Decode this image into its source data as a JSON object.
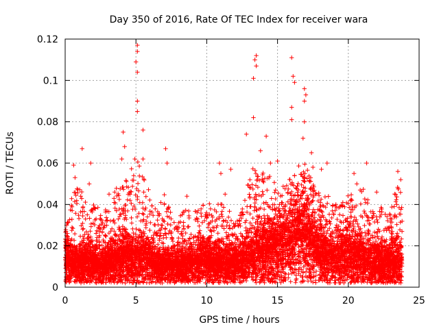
{
  "chart_data": {
    "type": "scatter",
    "title": "Day 350 of 2016, Rate Of TEC Index for receiver wara",
    "xlabel": "GPS time / hours",
    "ylabel": "ROTI / TECUs",
    "xlim": [
      0,
      25
    ],
    "ylim": [
      0,
      0.12
    ],
    "xticks": [
      "0",
      "5",
      "10",
      "15",
      "20",
      "25"
    ],
    "yticks": [
      "0",
      "0.02",
      "0.04",
      "0.06",
      "0.08",
      "0.1",
      "0.12"
    ],
    "grid": true,
    "marker": "+",
    "color": "#ff0000",
    "x_coverage": [
      0,
      23.8
    ],
    "envelope": [
      [
        0.0,
        0.014,
        0.03
      ],
      [
        0.5,
        0.012,
        0.045
      ],
      [
        1.0,
        0.011,
        0.05
      ],
      [
        1.5,
        0.012,
        0.045
      ],
      [
        2.0,
        0.011,
        0.04
      ],
      [
        2.5,
        0.01,
        0.038
      ],
      [
        3.0,
        0.011,
        0.04
      ],
      [
        3.5,
        0.012,
        0.045
      ],
      [
        4.0,
        0.014,
        0.06
      ],
      [
        4.5,
        0.013,
        0.05
      ],
      [
        5.0,
        0.014,
        0.07
      ],
      [
        5.5,
        0.014,
        0.06
      ],
      [
        6.0,
        0.012,
        0.045
      ],
      [
        6.5,
        0.01,
        0.038
      ],
      [
        7.0,
        0.011,
        0.045
      ],
      [
        7.5,
        0.01,
        0.035
      ],
      [
        8.0,
        0.01,
        0.036
      ],
      [
        8.5,
        0.011,
        0.038
      ],
      [
        9.0,
        0.011,
        0.036
      ],
      [
        9.5,
        0.012,
        0.04
      ],
      [
        10.0,
        0.012,
        0.042
      ],
      [
        10.5,
        0.011,
        0.038
      ],
      [
        11.0,
        0.011,
        0.045
      ],
      [
        11.5,
        0.011,
        0.04
      ],
      [
        12.0,
        0.011,
        0.035
      ],
      [
        12.5,
        0.012,
        0.04
      ],
      [
        13.0,
        0.015,
        0.055
      ],
      [
        13.5,
        0.017,
        0.06
      ],
      [
        14.0,
        0.017,
        0.055
      ],
      [
        14.5,
        0.018,
        0.055
      ],
      [
        15.0,
        0.02,
        0.05
      ],
      [
        15.5,
        0.02,
        0.05
      ],
      [
        16.0,
        0.022,
        0.055
      ],
      [
        16.5,
        0.024,
        0.06
      ],
      [
        17.0,
        0.024,
        0.06
      ],
      [
        17.5,
        0.02,
        0.05
      ],
      [
        18.0,
        0.016,
        0.045
      ],
      [
        18.5,
        0.015,
        0.045
      ],
      [
        19.0,
        0.014,
        0.042
      ],
      [
        19.5,
        0.014,
        0.04
      ],
      [
        20.0,
        0.015,
        0.045
      ],
      [
        20.5,
        0.014,
        0.045
      ],
      [
        21.0,
        0.013,
        0.048
      ],
      [
        21.5,
        0.012,
        0.045
      ],
      [
        22.0,
        0.012,
        0.04
      ],
      [
        22.5,
        0.011,
        0.038
      ],
      [
        23.0,
        0.011,
        0.04
      ],
      [
        23.5,
        0.012,
        0.05
      ]
    ],
    "peaks": [
      {
        "x": 0.1,
        "y": 0.03
      },
      {
        "x": 0.6,
        "y": 0.059
      },
      {
        "x": 0.7,
        "y": 0.053
      },
      {
        "x": 1.2,
        "y": 0.067
      },
      {
        "x": 1.1,
        "y": 0.044
      },
      {
        "x": 1.7,
        "y": 0.05
      },
      {
        "x": 1.8,
        "y": 0.06
      },
      {
        "x": 3.1,
        "y": 0.045
      },
      {
        "x": 3.5,
        "y": 0.046
      },
      {
        "x": 4.0,
        "y": 0.062
      },
      {
        "x": 4.1,
        "y": 0.075
      },
      {
        "x": 4.2,
        "y": 0.068
      },
      {
        "x": 5.1,
        "y": 0.117
      },
      {
        "x": 5.1,
        "y": 0.114
      },
      {
        "x": 5.0,
        "y": 0.109
      },
      {
        "x": 5.1,
        "y": 0.104
      },
      {
        "x": 5.1,
        "y": 0.09
      },
      {
        "x": 5.1,
        "y": 0.085
      },
      {
        "x": 5.5,
        "y": 0.076
      },
      {
        "x": 5.5,
        "y": 0.062
      },
      {
        "x": 7.1,
        "y": 0.067
      },
      {
        "x": 7.2,
        "y": 0.06
      },
      {
        "x": 8.6,
        "y": 0.044
      },
      {
        "x": 10.9,
        "y": 0.06
      },
      {
        "x": 11.0,
        "y": 0.055
      },
      {
        "x": 11.3,
        "y": 0.045
      },
      {
        "x": 11.7,
        "y": 0.057
      },
      {
        "x": 12.8,
        "y": 0.074
      },
      {
        "x": 13.3,
        "y": 0.082
      },
      {
        "x": 13.5,
        "y": 0.112
      },
      {
        "x": 13.4,
        "y": 0.11
      },
      {
        "x": 13.5,
        "y": 0.107
      },
      {
        "x": 13.3,
        "y": 0.101
      },
      {
        "x": 13.8,
        "y": 0.066
      },
      {
        "x": 14.2,
        "y": 0.073
      },
      {
        "x": 14.5,
        "y": 0.06
      },
      {
        "x": 15.0,
        "y": 0.061
      },
      {
        "x": 16.0,
        "y": 0.111
      },
      {
        "x": 16.1,
        "y": 0.102
      },
      {
        "x": 16.2,
        "y": 0.099
      },
      {
        "x": 16.0,
        "y": 0.087
      },
      {
        "x": 16.0,
        "y": 0.081
      },
      {
        "x": 16.9,
        "y": 0.096
      },
      {
        "x": 17.0,
        "y": 0.093
      },
      {
        "x": 16.9,
        "y": 0.09
      },
      {
        "x": 16.9,
        "y": 0.08
      },
      {
        "x": 16.8,
        "y": 0.072
      },
      {
        "x": 17.4,
        "y": 0.065
      },
      {
        "x": 17.5,
        "y": 0.058
      },
      {
        "x": 18.1,
        "y": 0.057
      },
      {
        "x": 18.5,
        "y": 0.06
      },
      {
        "x": 20.4,
        "y": 0.055
      },
      {
        "x": 20.6,
        "y": 0.05
      },
      {
        "x": 21.3,
        "y": 0.06
      },
      {
        "x": 22.0,
        "y": 0.046
      },
      {
        "x": 23.5,
        "y": 0.056
      },
      {
        "x": 23.7,
        "y": 0.052
      }
    ]
  }
}
